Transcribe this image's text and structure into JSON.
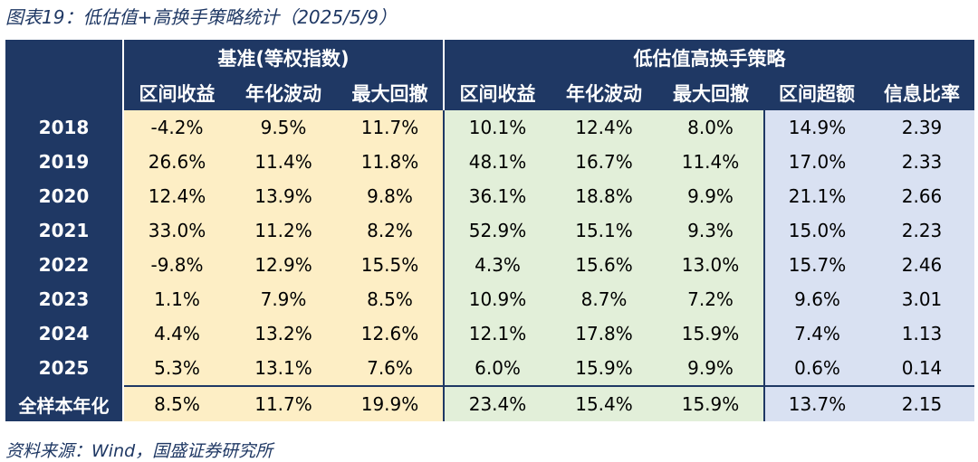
{
  "caption": "图表19：低估值+高换手策略统计（2025/5/9）",
  "source": "资料来源：Wind，国盛证券研究所",
  "groups": {
    "base": "基准(等权指数)",
    "strategy": "低估值高换手策略"
  },
  "columns": [
    "区间收益",
    "年化波动",
    "最大回撤",
    "区间收益",
    "年化波动",
    "最大回撤",
    "区间超额",
    "信息比率"
  ],
  "rows": [
    {
      "label": "2018",
      "values": [
        "-4.2%",
        "9.5%",
        "11.7%",
        "10.1%",
        "12.4%",
        "8.0%",
        "14.9%",
        "2.39"
      ]
    },
    {
      "label": "2019",
      "values": [
        "26.6%",
        "11.4%",
        "11.8%",
        "48.1%",
        "16.7%",
        "11.4%",
        "17.0%",
        "2.33"
      ]
    },
    {
      "label": "2020",
      "values": [
        "12.4%",
        "13.9%",
        "9.8%",
        "36.1%",
        "18.8%",
        "9.9%",
        "21.1%",
        "2.66"
      ]
    },
    {
      "label": "2021",
      "values": [
        "33.0%",
        "11.2%",
        "8.2%",
        "52.9%",
        "15.1%",
        "9.3%",
        "15.0%",
        "2.23"
      ]
    },
    {
      "label": "2022",
      "values": [
        "-9.8%",
        "12.9%",
        "15.5%",
        "4.3%",
        "15.6%",
        "13.0%",
        "15.7%",
        "2.46"
      ]
    },
    {
      "label": "2023",
      "values": [
        "1.1%",
        "7.9%",
        "8.5%",
        "10.9%",
        "8.7%",
        "7.2%",
        "9.6%",
        "3.01"
      ]
    },
    {
      "label": "2024",
      "values": [
        "4.4%",
        "13.2%",
        "12.6%",
        "12.1%",
        "17.8%",
        "15.9%",
        "7.4%",
        "1.13"
      ]
    },
    {
      "label": "2025",
      "values": [
        "5.3%",
        "13.1%",
        "7.6%",
        "6.0%",
        "15.9%",
        "9.9%",
        "0.6%",
        "0.14"
      ]
    },
    {
      "label": "全样本年化",
      "values": [
        "8.5%",
        "11.7%",
        "19.9%",
        "23.4%",
        "15.4%",
        "15.9%",
        "13.7%",
        "2.15"
      ]
    }
  ],
  "colors": {
    "header": "#1f3864",
    "base_fill": "#fdeec5",
    "strategy_fill": "#e2efd9",
    "excess_fill": "#d9e1f2"
  }
}
